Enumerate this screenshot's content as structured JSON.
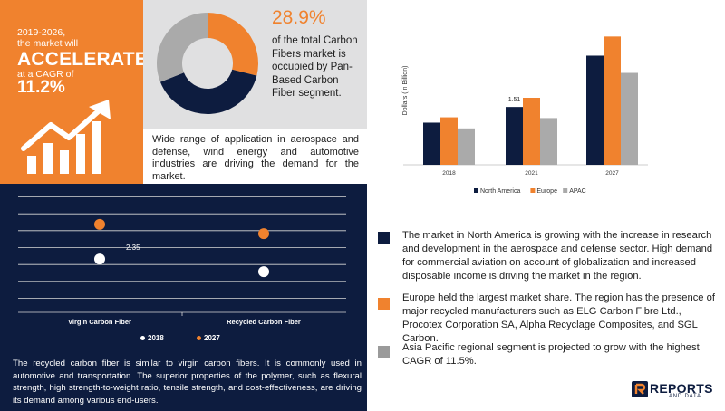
{
  "orange_panel": {
    "line1": "2019-2026,",
    "line2": "the market will",
    "headline": "ACCELERATE",
    "line3": "at a CAGR of",
    "cagr": "11.2%",
    "icon": "growth-chart-arrow-icon"
  },
  "donut_panel": {
    "percent": "28.9%",
    "description": "of the total Carbon Fibers market is occupied by Pan-Based Carbon Fiber segment.",
    "colors": {
      "orange": "#f0822e",
      "grey": "#aaaaaa",
      "navy": "#0d1c3f"
    }
  },
  "application_text": "Wide range of application in aerospace and defense, wind energy and automotive industries are driving the demand for the market.",
  "recycled_text": "The recycled carbon fiber is similar to virgin carbon fibers. It is commonly used in automotive and transportation. The superior properties of the polymer, such as flexural strength, high strength-to-weight ratio, tensile strength, and cost-effectiveness, are driving its demand among various end-users.",
  "bullets": [
    {
      "color": "#0d1c3f",
      "text": "The market in North America is growing with the increase in research and development in the aerospace and defense sector. High demand for commercial aviation on account of globalization and increased disposable income is driving the market in the region."
    },
    {
      "color": "#f0822e",
      "text": "Europe held the largest market share. The region has the presence of major recycled manufacturers such as ELG Carbon Fibre Ltd., Procotex Corporation SA, Alpha Recyclage Composites, and SGL Carbon."
    },
    {
      "color": "#9a9a9a",
      "text": "Asia Pacific regional segment is projected to grow with the highest CAGR of 11.5%."
    }
  ],
  "logo": {
    "main": "REPORTS",
    "sub": "AND DATA . . ."
  },
  "chart_data": [
    {
      "type": "pie",
      "variant": "donut",
      "title": "",
      "slices": [
        {
          "name": "",
          "value": 28.9,
          "color": "#f0822e"
        },
        {
          "name": "",
          "value": 40.1,
          "color": "#0d1c3f"
        },
        {
          "name": "",
          "value": 31.0,
          "color": "#aaaaaa"
        }
      ]
    },
    {
      "type": "bar",
      "title": "",
      "xlabel": "",
      "ylabel": "Dollars (In Billion)",
      "categories": [
        "2018",
        "2021",
        "2027"
      ],
      "series": [
        {
          "name": "North America",
          "color": "#0d1c3f",
          "values": [
            1.1,
            1.51,
            2.85
          ]
        },
        {
          "name": "Europe",
          "color": "#f0822e",
          "values": [
            1.24,
            1.75,
            3.35
          ]
        },
        {
          "name": "APAC",
          "color": "#aaaaaa",
          "values": [
            0.95,
            1.22,
            2.4
          ]
        }
      ],
      "data_labels": [
        {
          "series": 0,
          "index": 1,
          "text": "1.51"
        }
      ],
      "ylim": [
        0,
        3.5
      ],
      "legend": "bottom",
      "grid": false
    },
    {
      "type": "scatter",
      "title": "",
      "categories": [
        "Virgin Carbon Fiber",
        "Recycled Carbon Fiber"
      ],
      "series": [
        {
          "name": "2018",
          "color": "#ffffff",
          "values": [
            2.35,
            1.6
          ]
        },
        {
          "name": "2027",
          "color": "#f0822e",
          "values": [
            4.4,
            3.85
          ]
        }
      ],
      "data_labels": [
        {
          "series": 0,
          "index": 0,
          "text": "2.35"
        }
      ],
      "ylim": [
        0,
        6
      ],
      "legend": "bottom",
      "grid": true
    }
  ]
}
